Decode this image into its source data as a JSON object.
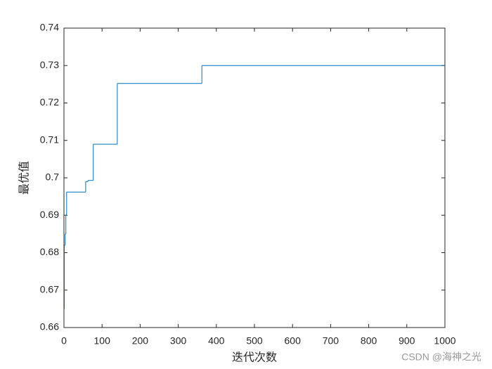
{
  "chart_data": {
    "type": "step-line",
    "xlabel": "迭代次数",
    "ylabel": "最优值",
    "watermark": "CSDN @海神之光",
    "x": [
      0,
      1,
      3,
      5,
      7,
      57,
      63,
      77,
      140,
      362,
      1000
    ],
    "series": [
      {
        "name": "最优值",
        "color": "#0072BD",
        "values": [
          0.665,
          0.682,
          0.685,
          0.69,
          0.6962,
          0.699,
          0.6993,
          0.709,
          0.7252,
          0.73,
          0.73
        ]
      }
    ],
    "xlim": [
      0,
      1000
    ],
    "xticks": [
      0,
      100,
      200,
      300,
      400,
      500,
      600,
      700,
      800,
      900,
      1000
    ],
    "ylim": [
      0.66,
      0.74
    ],
    "yticks": [
      0.66,
      0.67,
      0.68,
      0.69,
      0.7,
      0.71,
      0.72,
      0.73,
      0.74
    ],
    "grid": false
  }
}
